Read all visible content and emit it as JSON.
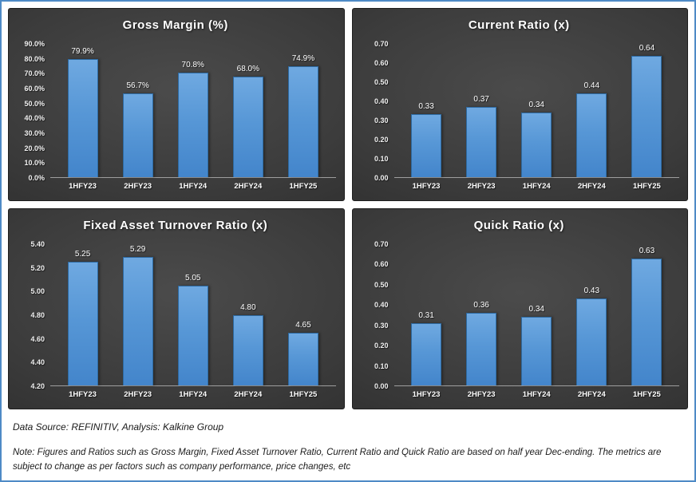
{
  "page": {
    "frame_border_color": "#4e8ac6",
    "background_color": "#ffffff"
  },
  "colors": {
    "panel_background_center": "#4b4b4b",
    "panel_background_edge": "#262626",
    "bar_gradient_top": "#6fa9e1",
    "bar_gradient_bottom": "#4385cb",
    "bar_border": "#2e6ba3",
    "axis_line": "#9e9e9e",
    "chart_text": "#ffffff"
  },
  "chart_data": [
    {
      "type": "bar",
      "title": "Gross Margin (%)",
      "categories": [
        "1HFY23",
        "2HFY23",
        "1HFY24",
        "2HFY24",
        "1HFY25"
      ],
      "values": [
        79.9,
        56.7,
        70.8,
        68.0,
        74.9
      ],
      "labels": [
        "79.9%",
        "56.7%",
        "70.8%",
        "68.0%",
        "74.9%"
      ],
      "y_ticks": [
        "90.0%",
        "80.0%",
        "70.0%",
        "60.0%",
        "50.0%",
        "40.0%",
        "30.0%",
        "20.0%",
        "10.0%",
        "0.0%"
      ],
      "ylim": [
        0,
        90
      ],
      "xlabel": "",
      "ylabel": "",
      "grid": false,
      "legend": false
    },
    {
      "type": "bar",
      "title": "Current Ratio (x)",
      "categories": [
        "1HFY23",
        "2HFY23",
        "1HFY24",
        "2HFY24",
        "1HFY25"
      ],
      "values": [
        0.33,
        0.37,
        0.34,
        0.44,
        0.64
      ],
      "labels": [
        "0.33",
        "0.37",
        "0.34",
        "0.44",
        "0.64"
      ],
      "y_ticks": [
        "0.70",
        "0.60",
        "0.50",
        "0.40",
        "0.30",
        "0.20",
        "0.10",
        "0.00"
      ],
      "ylim": [
        0,
        0.7
      ],
      "xlabel": "",
      "ylabel": "",
      "grid": false,
      "legend": false
    },
    {
      "type": "bar",
      "title": "Fixed Asset Turnover Ratio (x)",
      "categories": [
        "1HFY23",
        "2HFY23",
        "1HFY24",
        "2HFY24",
        "1HFY25"
      ],
      "values": [
        5.25,
        5.29,
        5.05,
        4.8,
        4.65
      ],
      "labels": [
        "5.25",
        "5.29",
        "5.05",
        "4.80",
        "4.65"
      ],
      "y_ticks": [
        "5.40",
        "5.20",
        "5.00",
        "4.80",
        "4.60",
        "4.40",
        "4.20"
      ],
      "ylim": [
        4.2,
        5.4
      ],
      "xlabel": "",
      "ylabel": "",
      "grid": false,
      "legend": false
    },
    {
      "type": "bar",
      "title": "Quick Ratio (x)",
      "categories": [
        "1HFY23",
        "2HFY23",
        "1HFY24",
        "2HFY24",
        "1HFY25"
      ],
      "values": [
        0.31,
        0.36,
        0.34,
        0.43,
        0.63
      ],
      "labels": [
        "0.31",
        "0.36",
        "0.34",
        "0.43",
        "0.63"
      ],
      "y_ticks": [
        "0.70",
        "0.60",
        "0.50",
        "0.40",
        "0.30",
        "0.20",
        "0.10",
        "0.00"
      ],
      "ylim": [
        0,
        0.7
      ],
      "xlabel": "",
      "ylabel": "",
      "grid": false,
      "legend": false
    }
  ],
  "footer": {
    "data_source": "Data Source: REFINITIV, Analysis: Kalkine Group",
    "note": "Note: Figures and Ratios such as Gross Margin, Fixed Asset Turnover Ratio, Current Ratio and Quick Ratio are based on half year Dec-ending. The metrics are subject to change as per factors such as company performance, price changes, etc"
  }
}
